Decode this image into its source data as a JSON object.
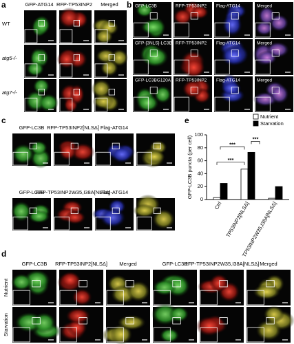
{
  "panels": {
    "a": {
      "letter": "a",
      "columns": [
        "GFP-ATG14",
        "RFP-TP53INP2",
        "Merged"
      ],
      "rows": [
        "WT",
        "atg5-/-",
        "atg7-/-"
      ]
    },
    "b": {
      "letter": "b",
      "rows": [
        [
          "GFP-LC3B",
          "RFP-TP53INP2",
          "Flag-ATG14",
          "Merged"
        ],
        [
          "GFP-[3NLS]-LC3B",
          "RFP-TP53INP2",
          "Flag-ATG14",
          "Merged"
        ],
        [
          "GFP-LC3BG120A",
          "RFP-TP53INP2",
          "Flag-ATG14",
          "Merged"
        ]
      ]
    },
    "c": {
      "letter": "c",
      "rows": [
        [
          "GFP-LC3B",
          "RFP-TP53INP2[NLSΔ]",
          "Flag-ATG14"
        ],
        [
          "GFP-LC3B",
          "RFP-TP53INP2W35,I38A[NLSΔ]",
          "Flag-ATG14"
        ]
      ]
    },
    "d": {
      "letter": "d",
      "columns": [
        "GFP-LC3B",
        "RFP-TP53INP2[NLSΔ]",
        "Merged",
        "GFP-LC3B",
        "RFP-TP53INP2W35,I38A[NLSΔ]",
        "Merged"
      ],
      "rows": [
        "Nutrient",
        "Starvation"
      ]
    }
  },
  "chart_data": {
    "type": "bar",
    "letter": "e",
    "y_label": "GFP-LC3B puncta (per cell)",
    "categories": [
      "Ctrl",
      "TP53INP2[NLSΔ]",
      "TP53INP2W35,I38A[NLSΔ]"
    ],
    "series": [
      {
        "name": "Nutrient",
        "color": "#ffffff",
        "values": [
          3,
          47,
          2
        ]
      },
      {
        "name": "Starvation",
        "color": "#000000",
        "values": [
          25,
          73,
          20
        ]
      }
    ],
    "ylim": [
      0,
      100
    ],
    "yticks": [
      0,
      20,
      40,
      60,
      80,
      100
    ],
    "legend": "top-right",
    "annotations": [
      "***",
      "***",
      "***"
    ]
  }
}
